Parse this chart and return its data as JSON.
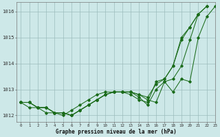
{
  "background_color": "#cde8e8",
  "plot_bg_color": "#cde8e8",
  "grid_color": "#9bbcbc",
  "line_color": "#1a6b1a",
  "title": "Graphe pression niveau de la mer (hPa)",
  "xlim": [
    -0.5,
    23
  ],
  "ylim": [
    1011.75,
    1016.35
  ],
  "yticks": [
    1012,
    1013,
    1014,
    1015,
    1016
  ],
  "xticks": [
    0,
    1,
    2,
    3,
    4,
    5,
    6,
    7,
    8,
    9,
    10,
    11,
    12,
    13,
    14,
    15,
    16,
    17,
    18,
    19,
    20,
    21,
    22,
    23
  ],
  "series": [
    [
      1012.5,
      1012.5,
      1012.3,
      1012.3,
      1012.1,
      1012.1,
      1012.0,
      1012.2,
      1012.4,
      1012.6,
      1012.8,
      1012.9,
      1012.9,
      1012.9,
      1012.8,
      1012.7,
      1013.2,
      1013.4,
      1013.9,
      1015.0,
      1015.4,
      1015.9,
      1016.2
    ],
    [
      1012.5,
      1012.5,
      1012.3,
      1012.3,
      1012.1,
      1012.1,
      1012.0,
      1012.2,
      1012.4,
      1012.6,
      1012.8,
      1012.9,
      1012.9,
      1012.9,
      1012.8,
      1012.6,
      1012.5,
      1013.3,
      1013.4,
      1013.9,
      1014.9,
      1015.9,
      1016.2
    ],
    [
      1012.5,
      1012.5,
      1012.3,
      1012.3,
      1012.1,
      1012.1,
      1012.0,
      1012.2,
      1012.4,
      1012.6,
      1012.8,
      1012.9,
      1012.9,
      1012.9,
      1012.7,
      1012.4,
      1013.0,
      1013.3,
      1012.9,
      1013.4,
      1013.3,
      1015.0,
      1015.8,
      1016.2
    ],
    [
      1012.5,
      1012.3,
      1012.3,
      1012.1,
      1012.1,
      1012.0,
      1012.2,
      1012.4,
      1012.6,
      1012.8,
      1012.9,
      1012.9,
      1012.9,
      1012.8,
      1012.6,
      1012.5,
      1013.3,
      1013.4,
      1013.9,
      1014.9,
      1015.4,
      1015.9
    ]
  ],
  "series_x": [
    [
      0,
      1,
      2,
      3,
      4,
      5,
      6,
      7,
      8,
      9,
      10,
      11,
      12,
      13,
      14,
      15,
      16,
      17,
      18,
      19,
      20,
      21,
      22
    ],
    [
      0,
      1,
      2,
      3,
      4,
      5,
      6,
      7,
      8,
      9,
      10,
      11,
      12,
      13,
      14,
      15,
      16,
      17,
      18,
      19,
      20,
      21,
      22
    ],
    [
      0,
      1,
      2,
      3,
      4,
      5,
      6,
      7,
      8,
      9,
      10,
      11,
      12,
      13,
      14,
      15,
      16,
      17,
      18,
      19,
      20,
      21,
      22,
      23
    ],
    [
      0,
      1,
      2,
      3,
      4,
      5,
      6,
      7,
      8,
      9,
      10,
      11,
      12,
      13,
      14,
      15,
      16,
      17,
      18,
      19,
      20,
      21
    ]
  ],
  "figsize": [
    3.2,
    2.0
  ],
  "dpi": 100
}
